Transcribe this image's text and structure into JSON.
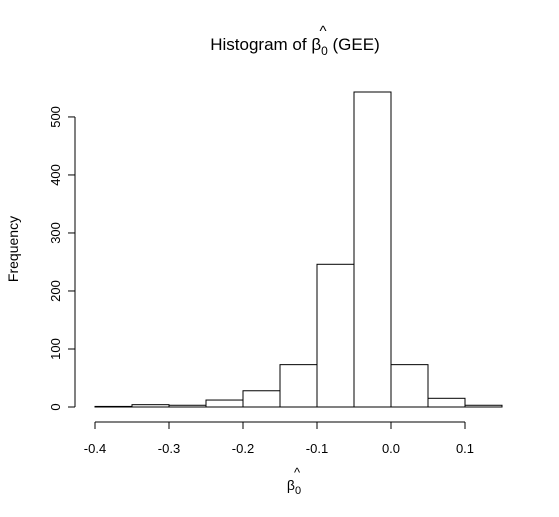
{
  "chart_data": {
    "type": "bar",
    "title_prefix": "Histogram of ",
    "title_symbol": "β",
    "title_hat": "^",
    "title_subscript": "0",
    "title_suffix": " (GEE)",
    "xlabel_symbol": "β",
    "xlabel_hat": "^",
    "xlabel_subscript": "0",
    "ylabel": "Frequency",
    "bin_edges": [
      -0.4,
      -0.35,
      -0.3,
      -0.25,
      -0.2,
      -0.15,
      -0.1,
      -0.05,
      0.0,
      0.05,
      0.1,
      0.15
    ],
    "values": [
      1,
      4,
      3,
      12,
      28,
      73,
      246,
      543,
      73,
      15,
      3
    ],
    "xlim": [
      -0.4,
      0.15
    ],
    "ylim": [
      0,
      543
    ],
    "x_ticks": [
      -0.4,
      -0.3,
      -0.2,
      -0.1,
      0.0,
      0.1
    ],
    "x_tick_labels": [
      "-0.4",
      "-0.3",
      "-0.2",
      "-0.1",
      "0.0",
      "0.1"
    ],
    "y_ticks": [
      0,
      100,
      200,
      300,
      400,
      500
    ],
    "y_tick_labels": [
      "0",
      "100",
      "200",
      "300",
      "400",
      "500"
    ],
    "grid": false,
    "legend": "none"
  }
}
